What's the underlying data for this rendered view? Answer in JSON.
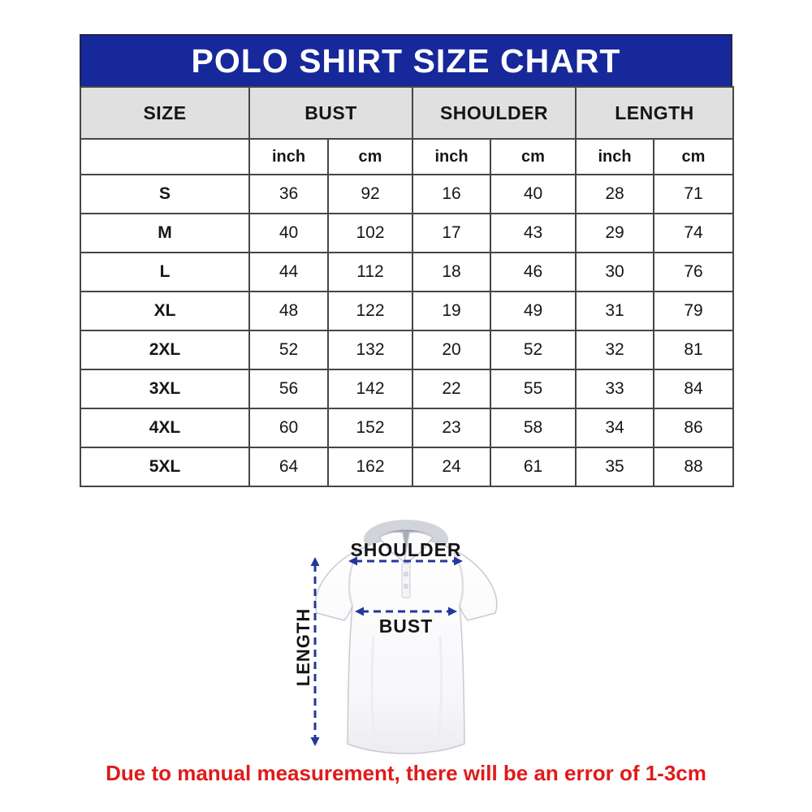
{
  "page": {
    "title": "POLO SHIRT SIZE CHART",
    "footnote": "Due to manual measurement, there will be an error of 1-3cm"
  },
  "colors": {
    "page_bg": "#ffffff",
    "title_bg": "#17289b",
    "title_text": "#ffffff",
    "title_border": "#23234d",
    "header_bg": "#e0e0e0",
    "grid_border": "#464646",
    "footnote_red": "#e01a1a",
    "arrow_blue": "#24379b"
  },
  "chart_data": {
    "type": "table",
    "title": "POLO SHIRT SIZE CHART",
    "column_groups": [
      {
        "label": "SIZE",
        "span": 1
      },
      {
        "label": "BUST",
        "span": 2
      },
      {
        "label": "SHOULDER",
        "span": 2
      },
      {
        "label": "LENGTH",
        "span": 2
      }
    ],
    "unit_row": [
      "inch",
      "cm",
      "inch",
      "cm",
      "inch",
      "cm"
    ],
    "rows": [
      {
        "size": "S",
        "values": [
          36,
          92,
          16,
          40,
          28,
          71
        ]
      },
      {
        "size": "M",
        "values": [
          40,
          102,
          17,
          43,
          29,
          74
        ]
      },
      {
        "size": "L",
        "values": [
          44,
          112,
          18,
          46,
          30,
          76
        ]
      },
      {
        "size": "XL",
        "values": [
          48,
          122,
          19,
          49,
          31,
          79
        ]
      },
      {
        "size": "2XL",
        "values": [
          52,
          132,
          20,
          52,
          32,
          81
        ]
      },
      {
        "size": "3XL",
        "values": [
          56,
          142,
          22,
          55,
          33,
          84
        ]
      },
      {
        "size": "4XL",
        "values": [
          60,
          152,
          23,
          58,
          34,
          86
        ]
      },
      {
        "size": "5XL",
        "values": [
          64,
          162,
          24,
          61,
          35,
          88
        ]
      }
    ]
  },
  "measurement_diagram": {
    "shoulder_label": "SHOULDER",
    "bust_label": "BUST",
    "length_label": "LENGTH"
  }
}
